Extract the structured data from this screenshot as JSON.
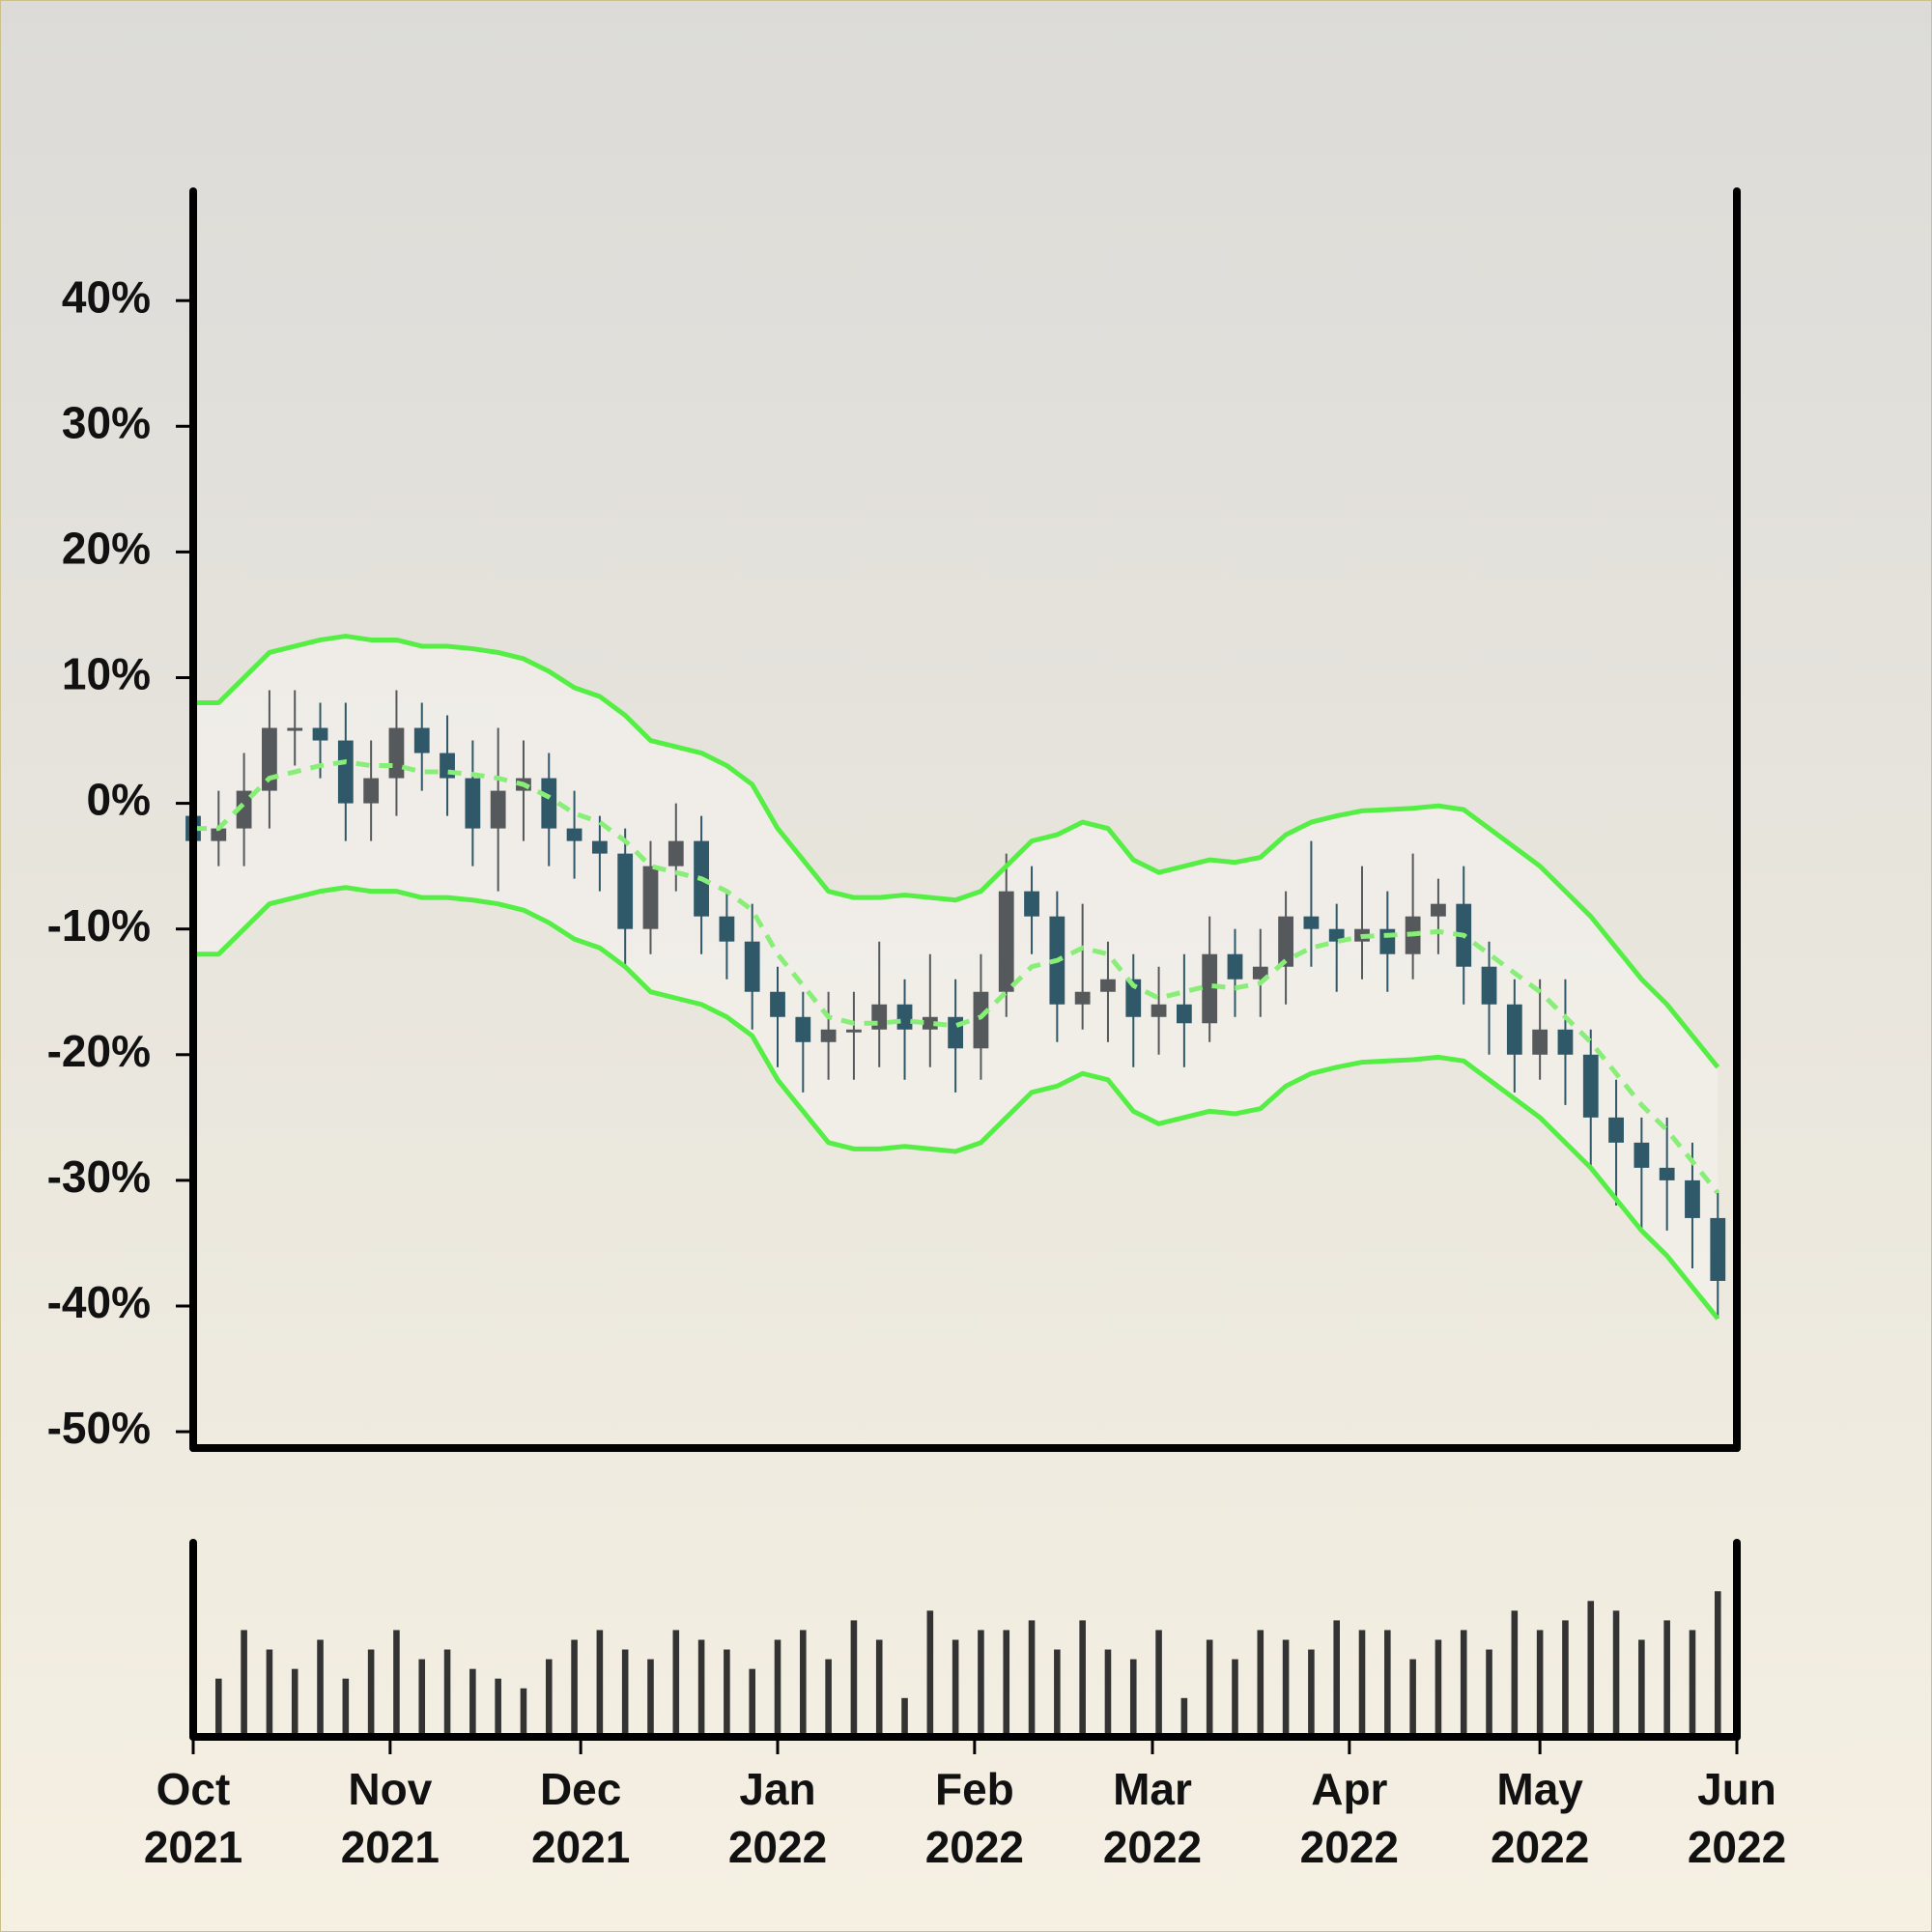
{
  "chart_data": [
    {
      "type": "candlestick",
      "x": [
        0,
        4,
        8,
        12,
        16,
        20,
        24,
        28,
        32,
        36,
        40,
        44,
        48,
        52,
        56,
        60,
        64,
        68,
        72,
        76,
        80,
        84,
        88,
        92,
        96,
        100,
        104,
        108,
        112,
        116,
        120,
        124,
        128,
        132,
        136,
        140,
        144,
        148,
        152,
        156,
        160,
        164,
        168,
        172,
        176,
        180,
        184,
        188,
        192,
        196,
        200,
        204,
        208,
        212,
        216,
        220,
        224,
        228,
        232,
        236,
        240
      ],
      "xlim": [
        0,
        243
      ],
      "ylim": [
        -51.3,
        48.7
      ],
      "yticks": [
        {
          "value": -50,
          "label": "-50%"
        },
        {
          "value": -40,
          "label": "-40%"
        },
        {
          "value": -30,
          "label": "-30%"
        },
        {
          "value": -20,
          "label": "-20%"
        },
        {
          "value": -10,
          "label": "-10%"
        },
        {
          "value": 0,
          "label": "0%"
        },
        {
          "value": 10,
          "label": "10%"
        },
        {
          "value": 20,
          "label": "20%"
        },
        {
          "value": 30,
          "label": "30%"
        },
        {
          "value": 40,
          "label": "40%"
        }
      ],
      "open": [
        -1,
        -3,
        -2,
        1,
        6,
        6,
        5,
        0,
        2,
        6,
        4,
        2,
        -2,
        1,
        2,
        -2,
        -3,
        -4,
        -10,
        -5,
        -3,
        -9,
        -11,
        -15,
        -17,
        -19,
        -18,
        -18,
        -16,
        -18,
        -17,
        -19.5,
        -15,
        -7,
        -9,
        -16,
        -15,
        -14,
        -17,
        -16,
        -17.5,
        -12,
        -14,
        -13,
        -9,
        -10,
        -11,
        -10,
        -12,
        -9,
        -8,
        -13,
        -16,
        -20,
        -18,
        -20,
        -25,
        -27,
        -29,
        -30,
        -33
      ],
      "high": [
        2,
        1,
        4,
        9,
        9,
        8,
        8,
        5,
        9,
        8,
        7,
        5,
        6,
        5,
        4,
        1,
        -1,
        -2,
        -3,
        0,
        -1,
        -7,
        -8,
        -13,
        -15,
        -15,
        -15,
        -11,
        -14,
        -12,
        -14,
        -12,
        -4,
        -5,
        -7,
        -8,
        -11,
        -12,
        -13,
        -12,
        -9,
        -10,
        -10,
        -7,
        -3,
        -8,
        -5,
        -7,
        -4,
        -6,
        -5,
        -11,
        -14,
        -14,
        -14,
        -18,
        -22,
        -25,
        -25,
        -27,
        -31
      ],
      "low": [
        -6,
        -5,
        -5,
        -2,
        3,
        2,
        -3,
        -3,
        -1,
        1,
        -1,
        -5,
        -7,
        -3,
        -5,
        -6,
        -7,
        -13,
        -12,
        -7,
        -12,
        -14,
        -18,
        -21,
        -23,
        -22,
        -22,
        -21,
        -22,
        -21,
        -23,
        -22,
        -17,
        -12,
        -19,
        -18,
        -19,
        -21,
        -20,
        -21,
        -19,
        -17,
        -17,
        -16,
        -13,
        -15,
        -14,
        -15,
        -14,
        -12,
        -16,
        -20,
        -23,
        -22,
        -24,
        -29,
        -32,
        -34,
        -34,
        -37,
        -41
      ],
      "close": [
        -3,
        -2,
        1,
        6,
        6,
        5,
        0,
        2,
        6,
        4,
        2,
        -2,
        1,
        2,
        -2,
        -3,
        -4,
        -10,
        -5,
        -3,
        -9,
        -11,
        -15,
        -17,
        -19,
        -18,
        -18,
        -16,
        -18,
        -17,
        -19.5,
        -15,
        -7,
        -9,
        -16,
        -15,
        -14,
        -17,
        -16,
        -17.5,
        -12,
        -14,
        -13,
        -9,
        -10,
        -11,
        -10,
        -12,
        -9,
        -8,
        -13,
        -16,
        -20,
        -18,
        -20,
        -25,
        -27,
        -29,
        -30,
        -33,
        -38
      ],
      "upper": [
        8,
        8,
        10,
        12,
        12.5,
        13,
        13.3,
        13,
        13,
        12.5,
        12.5,
        12.3,
        12,
        11.5,
        10.5,
        9.2,
        8.5,
        7,
        5,
        4.5,
        4,
        3,
        1.5,
        -2,
        -4.5,
        -7,
        -7.5,
        -7.5,
        -7.3,
        -7.5,
        -7.7,
        -7,
        -5,
        -3,
        -2.5,
        -1.5,
        -2,
        -4.5,
        -5.5,
        -5,
        -4.5,
        -4.7,
        -4.3,
        -2.5,
        -1.5,
        -1,
        -0.6,
        -0.5,
        -0.4,
        -0.2,
        -0.5,
        -2,
        -3.5,
        -5,
        -7,
        -9,
        -11.5,
        -14,
        -16,
        -18.5,
        -21
      ],
      "middle": [
        -2,
        -2,
        0,
        2,
        2.5,
        3,
        3.3,
        3,
        3,
        2.5,
        2.5,
        2.3,
        2,
        1.5,
        0.5,
        -0.8,
        -1.5,
        -3,
        -5,
        -5.5,
        -6,
        -7,
        -8.5,
        -12,
        -14.5,
        -17,
        -17.5,
        -17.5,
        -17.3,
        -17.5,
        -17.7,
        -17,
        -15,
        -13,
        -12.5,
        -11.5,
        -12,
        -14.5,
        -15.5,
        -15,
        -14.5,
        -14.7,
        -14.3,
        -12.5,
        -11.5,
        -11,
        -10.6,
        -10.5,
        -10.4,
        -10.2,
        -10.5,
        -12,
        -13.5,
        -15,
        -17,
        -19,
        -21.5,
        -24,
        -26,
        -28.5,
        -31
      ],
      "lower": [
        -12,
        -12,
        -10,
        -8,
        -7.5,
        -7,
        -6.7,
        -7,
        -7,
        -7.5,
        -7.5,
        -7.7,
        -8,
        -8.5,
        -9.5,
        -10.8,
        -11.5,
        -13,
        -15,
        -15.5,
        -16,
        -17,
        -18.5,
        -22,
        -24.5,
        -27,
        -27.5,
        -27.5,
        -27.3,
        -27.5,
        -27.7,
        -27,
        -25,
        -23,
        -22.5,
        -21.5,
        -22,
        -24.5,
        -25.5,
        -25,
        -24.5,
        -24.7,
        -24.3,
        -22.5,
        -21.5,
        -21,
        -20.6,
        -20.5,
        -20.4,
        -20.2,
        -20.5,
        -22,
        -23.5,
        -25,
        -27,
        -29,
        -31.5,
        -34,
        -36,
        -38.5,
        -41
      ],
      "up_color": "#55595c",
      "down_color": "#2f5868",
      "band_color": "#55ee44",
      "middle_color": "#88ee77"
    },
    {
      "type": "bar",
      "x": [
        0,
        4,
        8,
        12,
        16,
        20,
        24,
        28,
        32,
        36,
        40,
        44,
        48,
        52,
        56,
        60,
        64,
        68,
        72,
        76,
        80,
        84,
        88,
        92,
        96,
        100,
        104,
        108,
        112,
        116,
        120,
        124,
        128,
        132,
        136,
        140,
        144,
        148,
        152,
        156,
        160,
        164,
        168,
        172,
        176,
        180,
        184,
        188,
        192,
        196,
        200,
        204,
        208,
        212,
        216,
        220,
        224,
        228,
        232,
        236,
        240
      ],
      "values": [
        40,
        30,
        55,
        45,
        35,
        50,
        30,
        45,
        55,
        40,
        45,
        35,
        30,
        25,
        40,
        50,
        55,
        45,
        40,
        55,
        50,
        45,
        35,
        50,
        55,
        40,
        60,
        50,
        20,
        65,
        50,
        55,
        55,
        60,
        45,
        60,
        45,
        40,
        55,
        20,
        50,
        40,
        55,
        50,
        45,
        60,
        55,
        55,
        40,
        50,
        55,
        45,
        65,
        55,
        60,
        70,
        65,
        50,
        60,
        55,
        75
      ],
      "xlim": [
        0,
        243
      ],
      "ylim": [
        0,
        100
      ],
      "xticks": [
        {
          "value": 0,
          "label": [
            "Oct",
            "2021"
          ]
        },
        {
          "value": 31,
          "label": [
            "Nov",
            "2021"
          ]
        },
        {
          "value": 61,
          "label": [
            "Dec",
            "2021"
          ]
        },
        {
          "value": 92,
          "label": [
            "Jan",
            "2022"
          ]
        },
        {
          "value": 123,
          "label": [
            "Feb",
            "2022"
          ]
        },
        {
          "value": 151,
          "label": [
            "Mar",
            "2022"
          ]
        },
        {
          "value": 182,
          "label": [
            "Apr",
            "2022"
          ]
        },
        {
          "value": 212,
          "label": [
            "May",
            "2022"
          ]
        },
        {
          "value": 243,
          "label": [
            "Jun",
            "2022"
          ]
        }
      ],
      "color": "#333333"
    }
  ]
}
